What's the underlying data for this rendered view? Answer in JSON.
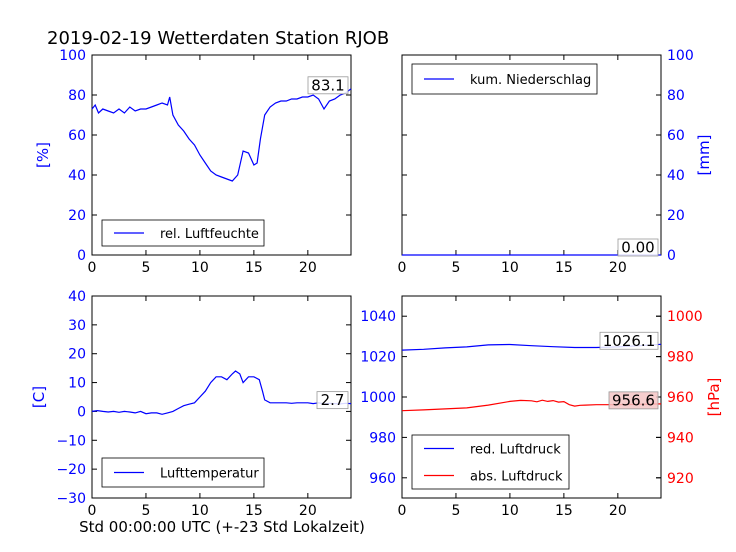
{
  "colors": {
    "blue": "#0000ff",
    "red": "#ff0000",
    "black": "#000000"
  },
  "figure": {
    "title": "2019-02-19 Wetterdaten Station RJOB",
    "xlabel": "Std 00:00:00 UTC (+-23 Std Lokalzeit)"
  },
  "chart_data": [
    {
      "type": "line",
      "panel": "humidity",
      "ylabel": "[%]",
      "xlim": [
        0,
        24
      ],
      "ylim": [
        0,
        100
      ],
      "xticks": [
        "0",
        "5",
        "10",
        "15",
        "20"
      ],
      "yticks": [
        "0",
        "20",
        "40",
        "60",
        "80",
        "100"
      ],
      "legend": [
        "rel. Luftfeuchte"
      ],
      "legend_placement": "lower-left",
      "last_value_label": "83.1",
      "series": [
        {
          "name": "rel. Luftfeuchte",
          "color": "#0000ff",
          "x": [
            0,
            0.3,
            0.6,
            1,
            1.5,
            2,
            2.5,
            3,
            3.5,
            4,
            4.5,
            5,
            5.5,
            6,
            6.5,
            7,
            7.2,
            7.5,
            8,
            8.5,
            9,
            9.5,
            10,
            10.5,
            11,
            11.5,
            12,
            12.5,
            13,
            13.5,
            14,
            14.5,
            15,
            15.3,
            15.6,
            16,
            16.5,
            17,
            17.5,
            18,
            18.5,
            19,
            19.5,
            20,
            20.5,
            21,
            21.5,
            22,
            22.5,
            23,
            23.5,
            24
          ],
          "y": [
            73,
            75,
            71,
            73,
            72,
            71,
            73,
            71,
            74,
            72,
            73,
            73,
            74,
            75,
            76,
            75,
            79,
            70,
            65,
            62,
            58,
            55,
            50,
            46,
            42,
            40,
            39,
            38,
            37,
            40,
            52,
            51,
            45,
            46,
            58,
            70,
            74,
            76,
            77,
            77,
            78,
            78,
            79,
            79,
            80,
            78,
            73,
            77,
            78,
            80,
            81,
            83.1
          ]
        }
      ]
    },
    {
      "type": "line",
      "panel": "precipitation",
      "ylabel": "[mm]",
      "xlim": [
        0,
        24
      ],
      "ylim": [
        0,
        100
      ],
      "xticks": [
        "0",
        "5",
        "10",
        "15",
        "20"
      ],
      "yticks": [
        "0",
        "20",
        "40",
        "60",
        "80",
        "100"
      ],
      "legend": [
        "kum. Niederschlag"
      ],
      "legend_placement": "top-left",
      "last_value_label": "0.00",
      "series": [
        {
          "name": "kum. Niederschlag",
          "color": "#0000ff",
          "x": [
            0,
            24
          ],
          "y": [
            0,
            0
          ]
        }
      ]
    },
    {
      "type": "line",
      "panel": "temperature",
      "ylabel": "[C]",
      "xlim": [
        0,
        24
      ],
      "ylim": [
        -30,
        40
      ],
      "xticks": [
        "0",
        "5",
        "10",
        "15",
        "20"
      ],
      "yticks": [
        "−30",
        "−20",
        "−10",
        "0",
        "10",
        "20",
        "30",
        "40"
      ],
      "legend": [
        "Lufttemperatur"
      ],
      "legend_placement": "lower-left",
      "last_value_label": "2.7",
      "series": [
        {
          "name": "Lufttemperatur",
          "color": "#0000ff",
          "x": [
            0,
            0.5,
            1,
            1.5,
            2,
            2.5,
            3,
            3.5,
            4,
            4.5,
            5,
            5.5,
            6,
            6.5,
            7,
            7.5,
            8,
            8.5,
            9,
            9.5,
            10,
            10.5,
            11,
            11.5,
            12,
            12.5,
            13,
            13.3,
            13.7,
            14,
            14.5,
            15,
            15.5,
            15.8,
            16,
            16.5,
            17,
            17.5,
            18,
            18.5,
            19,
            19.5,
            20,
            20.5,
            21,
            21.5,
            22,
            22.5,
            23,
            23.5,
            24
          ],
          "y": [
            0,
            0.3,
            0,
            -0.2,
            0,
            -0.3,
            0,
            -0.2,
            -0.5,
            0,
            -0.8,
            -0.5,
            -0.5,
            -1,
            -0.5,
            0,
            1,
            2,
            2.5,
            3,
            5,
            7,
            10,
            12,
            12,
            11,
            13,
            14,
            13,
            10,
            12,
            12,
            11,
            7,
            4,
            3,
            3,
            3,
            3,
            2.8,
            3,
            3,
            3,
            2.7,
            3,
            2.6,
            2.8,
            2.7,
            2.6,
            2.8,
            2.7
          ]
        }
      ]
    },
    {
      "type": "line",
      "panel": "pressure",
      "ylabel": "[hPa]",
      "xlim": [
        0,
        24
      ],
      "ylim_left": [
        950,
        1050
      ],
      "ylim_right": [
        910,
        1010
      ],
      "xticks": [
        "0",
        "5",
        "10",
        "15",
        "20"
      ],
      "yticks_left": [
        "960",
        "980",
        "1000",
        "1020",
        "1040"
      ],
      "yticks_right": [
        "920",
        "940",
        "960",
        "980",
        "1000"
      ],
      "legend": [
        "red. Luftdruck",
        "abs. Luftdruck"
      ],
      "legend_placement": "lower-left",
      "last_value_labels": [
        "1026.1",
        "956.6"
      ],
      "series": [
        {
          "name": "red. Luftdruck",
          "color": "#0000ff",
          "axis": "left",
          "x": [
            0,
            2,
            4,
            6,
            8,
            10,
            12,
            14,
            16,
            18,
            20,
            22,
            24
          ],
          "y": [
            1023.2,
            1023.6,
            1024.3,
            1024.8,
            1025.8,
            1026.0,
            1025.4,
            1024.9,
            1024.5,
            1024.5,
            1024.8,
            1025.4,
            1026.1
          ]
        },
        {
          "name": "abs. Luftdruck",
          "color": "#ff0000",
          "axis": "right",
          "x": [
            0,
            2,
            4,
            6,
            8,
            10,
            11,
            12,
            12.5,
            13,
            13.5,
            14,
            14.5,
            15,
            15.5,
            16,
            16.5,
            17,
            18,
            20,
            22,
            24
          ],
          "y": [
            953.2,
            953.6,
            954.1,
            954.6,
            956.0,
            957.8,
            958.3,
            958.1,
            957.6,
            958.4,
            957.8,
            958.2,
            957.5,
            957.7,
            956.2,
            955.5,
            955.9,
            956.0,
            956.2,
            956.2,
            956.4,
            956.6
          ]
        }
      ]
    }
  ]
}
